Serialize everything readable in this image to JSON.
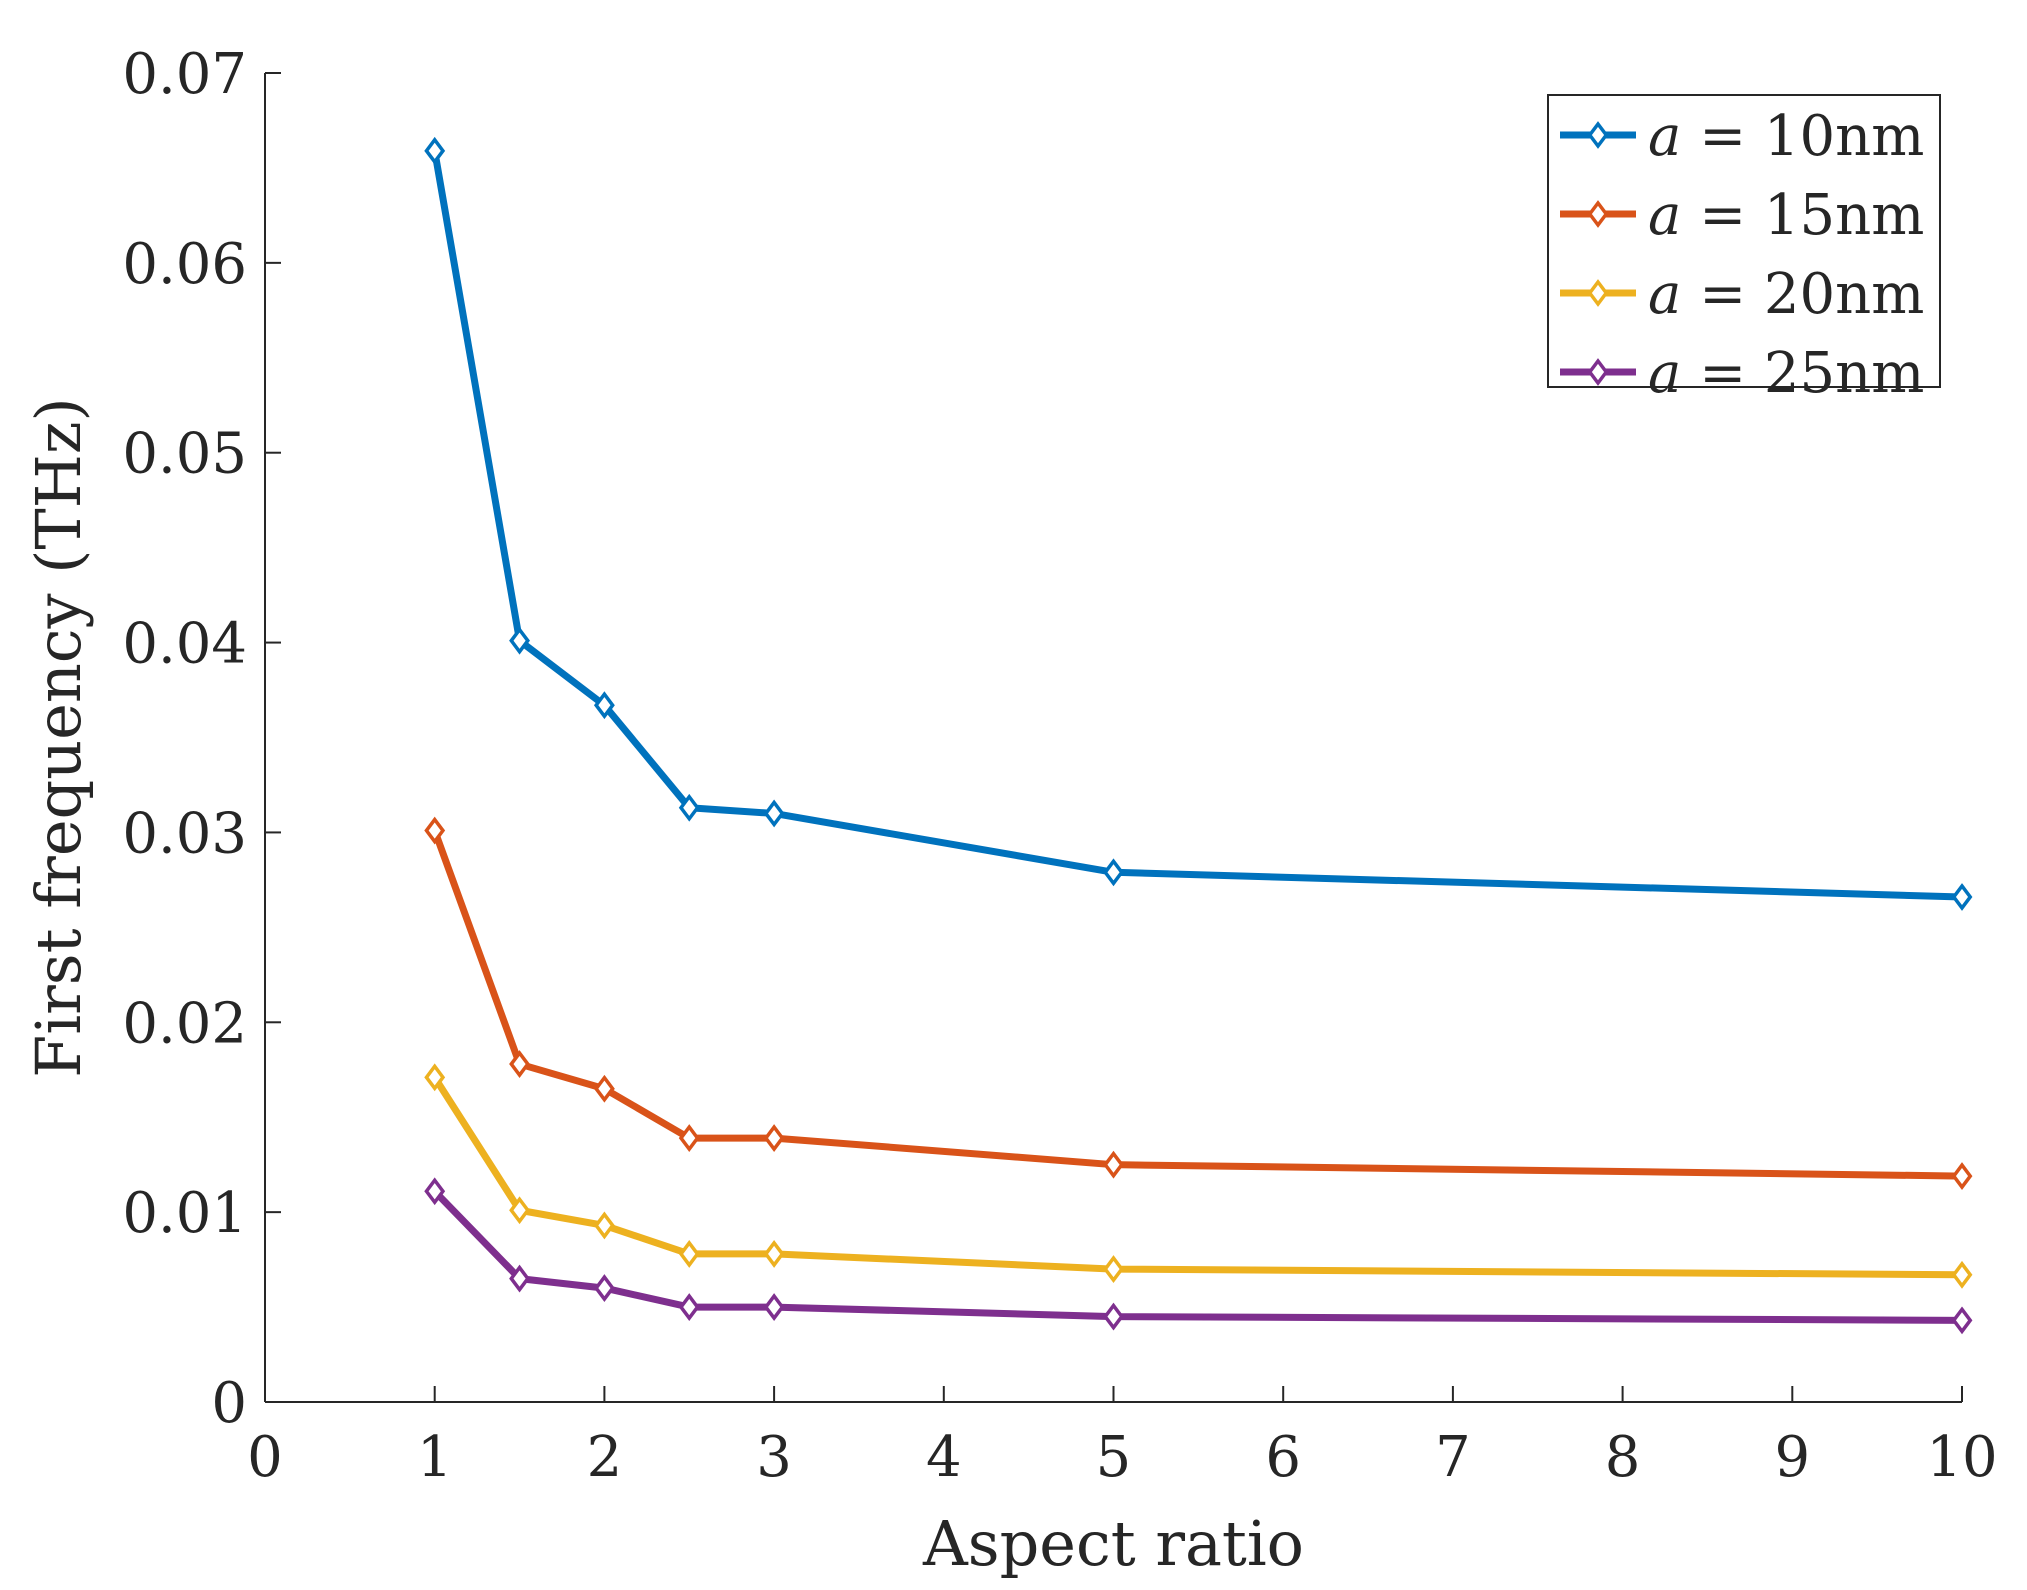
{
  "chart_data": {
    "type": "line",
    "xlabel": "Aspect ratio",
    "ylabel": "First frequency (THz)",
    "xlim": [
      0,
      10
    ],
    "ylim": [
      0,
      0.07
    ],
    "xticks": [
      "0",
      "1",
      "2",
      "3",
      "4",
      "5",
      "6",
      "7",
      "8",
      "9",
      "10"
    ],
    "yticks": [
      "0",
      "0.01",
      "0.02",
      "0.03",
      "0.04",
      "0.05",
      "0.06",
      "0.07"
    ],
    "grid": false,
    "legend_position": "top-right",
    "x": [
      1,
      1.5,
      2,
      2.5,
      3,
      5,
      10
    ],
    "series": [
      {
        "name": "a = 10nm",
        "name_var": "a",
        "name_rest": " = 10nm",
        "color": "#0072BD",
        "values": [
          0.0659,
          0.0401,
          0.0367,
          0.0313,
          0.031,
          0.0279,
          0.0266
        ]
      },
      {
        "name": "a = 15nm",
        "name_var": "a",
        "name_rest": " = 15nm",
        "color": "#D95319",
        "values": [
          0.0301,
          0.0178,
          0.0165,
          0.0139,
          0.0139,
          0.0125,
          0.0119
        ]
      },
      {
        "name": "a = 20nm",
        "name_var": "a",
        "name_rest": " = 20nm",
        "color": "#EDB120",
        "values": [
          0.0171,
          0.0101,
          0.0093,
          0.0078,
          0.0078,
          0.007,
          0.0067
        ]
      },
      {
        "name": "a = 25nm",
        "name_var": "a",
        "name_rest": " = 25nm",
        "color": "#7E2F8E",
        "values": [
          0.0111,
          0.0065,
          0.006,
          0.005,
          0.005,
          0.0045,
          0.0043
        ]
      }
    ]
  }
}
